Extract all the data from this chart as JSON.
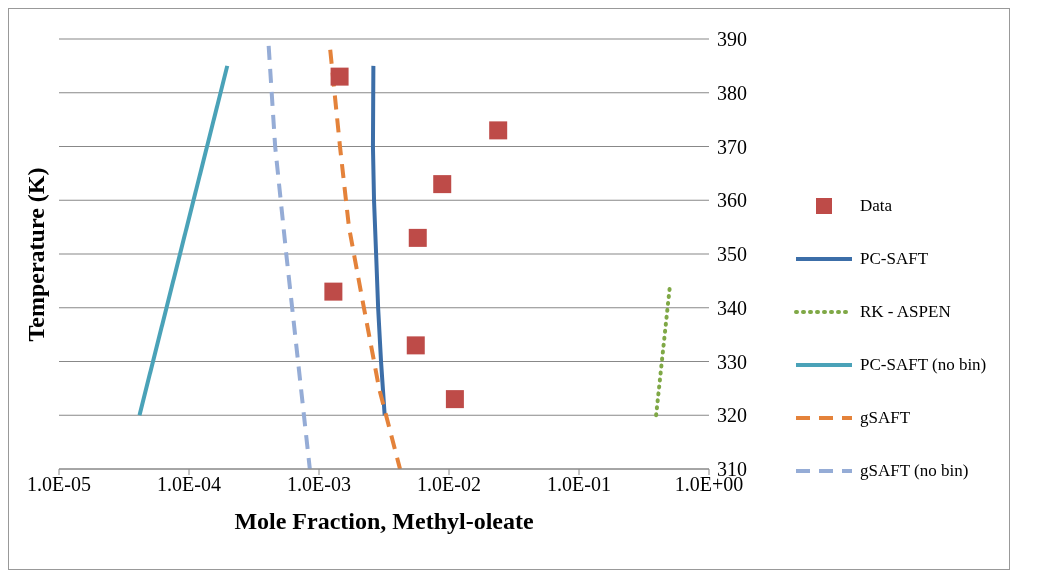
{
  "chart_data": {
    "type": "line",
    "xlabel": "Mole Fraction, Methyl-oleate",
    "ylabel": "Temperature (K)",
    "log": "x",
    "xlim": [
      1e-05,
      1
    ],
    "xticks": [
      {
        "value": 1e-05,
        "label": "1.0E-05"
      },
      {
        "value": 0.0001,
        "label": "1.0E-04"
      },
      {
        "value": 0.001,
        "label": "1.0E-03"
      },
      {
        "value": 0.01,
        "label": "1.0E-02"
      },
      {
        "value": 0.1,
        "label": "1.0E-01"
      },
      {
        "value": 1,
        "label": "1.0E+00"
      }
    ],
    "ylim": [
      310,
      390
    ],
    "yticks": [
      310,
      320,
      330,
      340,
      350,
      360,
      370,
      380,
      390
    ],
    "grid": "y",
    "legend": "right",
    "series": [
      {
        "name": "Data",
        "type": "scatter",
        "marker": "square",
        "color": "#be4b48",
        "x": [
          0.0111,
          0.00555,
          0.00129,
          0.00575,
          0.00887,
          0.0239,
          0.00144
        ],
        "values": [
          323,
          333,
          343,
          353,
          363,
          373,
          383
        ]
      },
      {
        "name": "PC-SAFT",
        "line_style": "solid",
        "marker": "none",
        "color": "#3c6ea8",
        "x": [
          0.0032,
          0.003,
          0.00285,
          0.00275,
          0.00265,
          0.0026,
          0.00262
        ],
        "values": [
          320,
          330,
          340,
          350,
          360,
          370,
          385
        ]
      },
      {
        "name": "RK - ASPEN",
        "line_style": "dotted",
        "marker": "none",
        "color": "#7fa846",
        "x": [
          0.392,
          0.5
        ],
        "values": [
          320,
          344
        ]
      },
      {
        "name": "PC-SAFT (no bin)",
        "line_style": "solid",
        "marker": "none",
        "color": "#4aa2b8",
        "x": [
          4.16e-05,
          0.000197
        ],
        "values": [
          320,
          385
        ]
      },
      {
        "name": "gSAFT",
        "line_style": "dashed",
        "marker": "none",
        "color": "#e4823a",
        "x": [
          0.00122,
          0.00145,
          0.0017,
          0.0021,
          0.0029,
          0.0042
        ],
        "values": [
          388,
          370,
          355,
          343,
          325,
          310
        ]
      },
      {
        "name": "gSAFT (no bin)",
        "line_style": "dashed",
        "marker": "none",
        "color": "#95acd6",
        "x": [
          0.00041,
          0.00046,
          0.00056,
          0.00069,
          0.00085
        ],
        "values": [
          388.7,
          370,
          350,
          330,
          310
        ]
      }
    ]
  }
}
